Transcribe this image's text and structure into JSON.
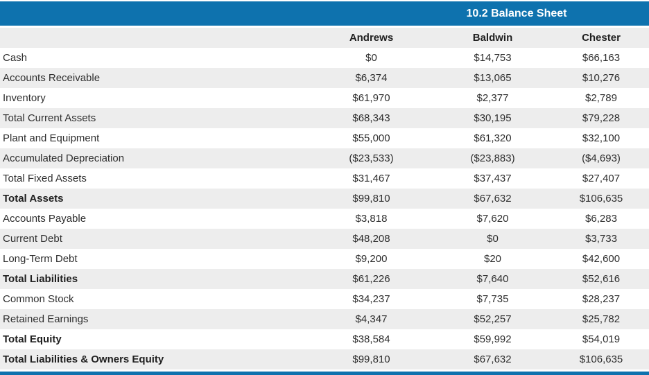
{
  "table": {
    "title": "10.2 Balance Sheet",
    "columns": [
      "Andrews",
      "Baldwin",
      "Chester"
    ],
    "rows": [
      {
        "label": "Cash",
        "values": [
          "$0",
          "$14,753",
          "$66,163"
        ],
        "bold": false
      },
      {
        "label": "Accounts Receivable",
        "values": [
          "$6,374",
          "$13,065",
          "$10,276"
        ],
        "bold": false
      },
      {
        "label": "Inventory",
        "values": [
          "$61,970",
          "$2,377",
          "$2,789"
        ],
        "bold": false
      },
      {
        "label": "Total Current Assets",
        "values": [
          "$68,343",
          "$30,195",
          "$79,228"
        ],
        "bold": false
      },
      {
        "label": "Plant and Equipment",
        "values": [
          "$55,000",
          "$61,320",
          "$32,100"
        ],
        "bold": false
      },
      {
        "label": "Accumulated Depreciation",
        "values": [
          "($23,533)",
          "($23,883)",
          "($4,693)"
        ],
        "bold": false
      },
      {
        "label": "Total Fixed Assets",
        "values": [
          "$31,467",
          "$37,437",
          "$27,407"
        ],
        "bold": false
      },
      {
        "label": "Total Assets",
        "values": [
          "$99,810",
          "$67,632",
          "$106,635"
        ],
        "bold": true
      },
      {
        "label": "Accounts Payable",
        "values": [
          "$3,818",
          "$7,620",
          "$6,283"
        ],
        "bold": false
      },
      {
        "label": "Current Debt",
        "values": [
          "$48,208",
          "$0",
          "$3,733"
        ],
        "bold": false
      },
      {
        "label": "Long-Term Debt",
        "values": [
          "$9,200",
          "$20",
          "$42,600"
        ],
        "bold": false
      },
      {
        "label": "Total Liabilities",
        "values": [
          "$61,226",
          "$7,640",
          "$52,616"
        ],
        "bold": true
      },
      {
        "label": "Common Stock",
        "values": [
          "$34,237",
          "$7,735",
          "$28,237"
        ],
        "bold": false
      },
      {
        "label": "Retained Earnings",
        "values": [
          "$4,347",
          "$52,257",
          "$25,782"
        ],
        "bold": false
      },
      {
        "label": "Total Equity",
        "values": [
          "$38,584",
          "$59,992",
          "$54,019"
        ],
        "bold": true
      },
      {
        "label": "Total Liabilities & Owners Equity",
        "values": [
          "$99,810",
          "$67,632",
          "$106,635"
        ],
        "bold": true
      }
    ]
  },
  "colors": {
    "accent_blue": "#0e72ae",
    "row_alt_gray": "#ededed",
    "title_text": "#ffffff",
    "body_text": "#2e2e2e"
  }
}
